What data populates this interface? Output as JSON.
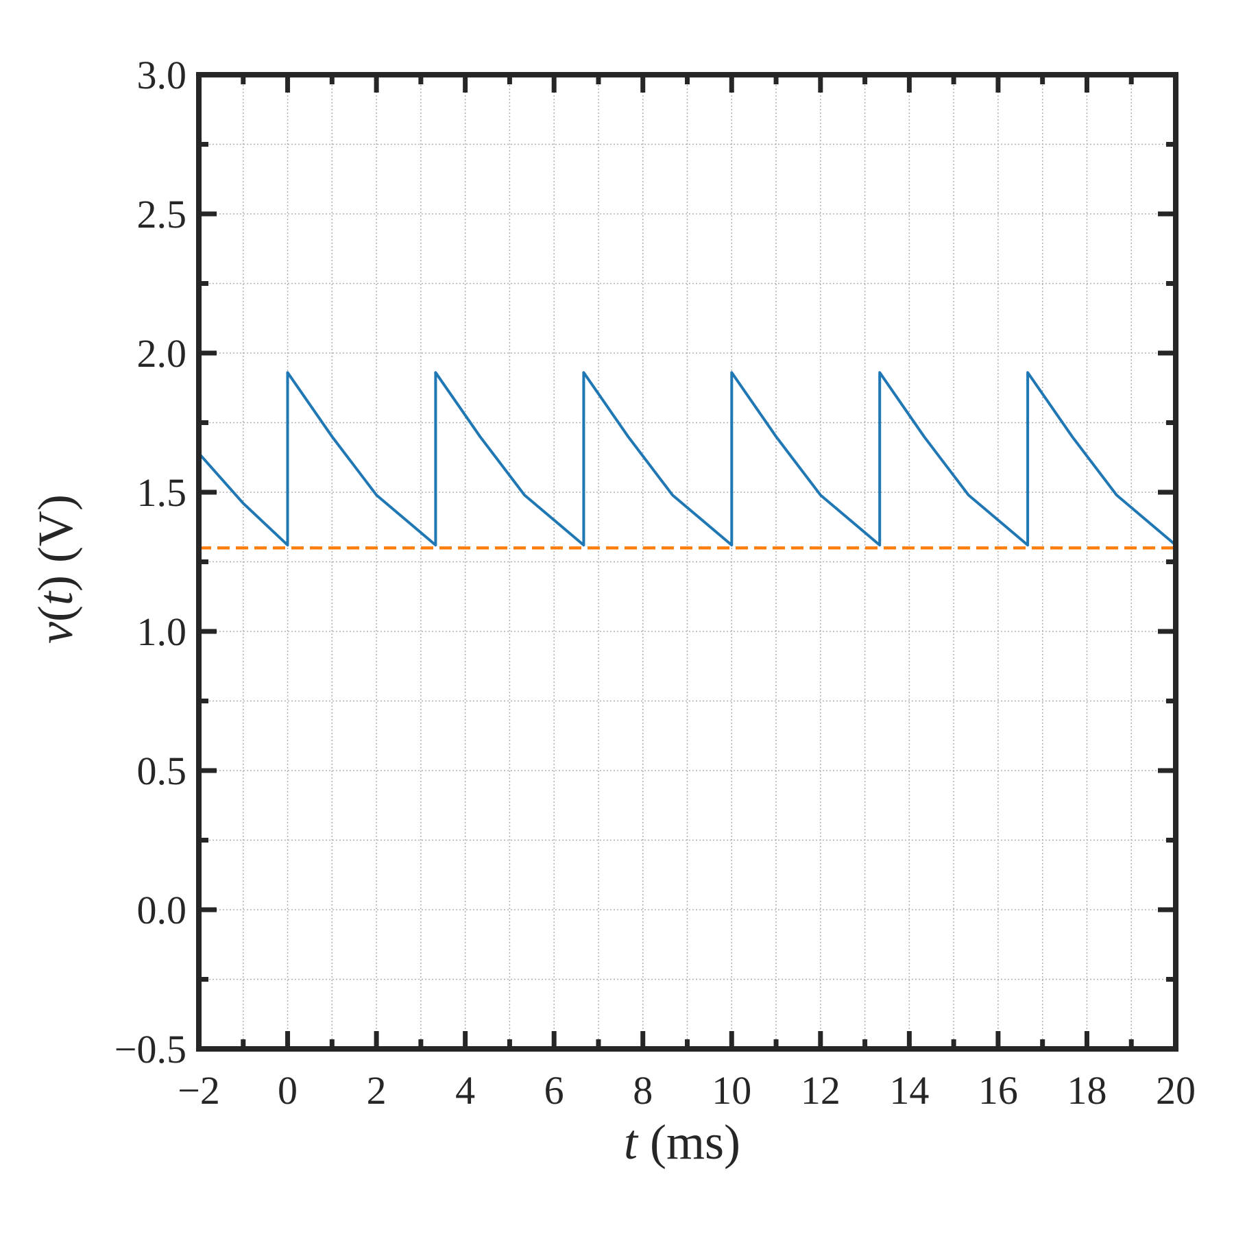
{
  "chart_data": {
    "type": "line",
    "title": "",
    "xlabel": {
      "var": "t",
      "unit": " (ms)"
    },
    "ylabel": {
      "var_v": "v",
      "open": "(",
      "var_t": "t",
      "close": ")",
      "unit": " (V)"
    },
    "xlim": [
      -2,
      20
    ],
    "ylim": [
      -0.5,
      3.0
    ],
    "xticks": [
      -2,
      0,
      2,
      4,
      6,
      8,
      10,
      12,
      14,
      16,
      18,
      20
    ],
    "xtick_labels": [
      "−2",
      "0",
      "2",
      "4",
      "6",
      "8",
      "10",
      "12",
      "14",
      "16",
      "18",
      "20"
    ],
    "yticks": [
      -0.5,
      0.0,
      0.5,
      1.0,
      1.5,
      2.0,
      2.5,
      3.0
    ],
    "ytick_labels": [
      "−0.5",
      "0.0",
      "0.5",
      "1.0",
      "1.5",
      "2.0",
      "2.5",
      "3.0"
    ],
    "grid": true,
    "legend": "none",
    "series": [
      {
        "style": "solid",
        "color": "#1f77b4",
        "x": [
          -2.0,
          -1.0,
          0.0,
          0.0,
          1.0,
          2.0,
          3.333,
          3.333,
          4.333,
          5.333,
          6.667,
          6.667,
          7.667,
          8.667,
          10.0,
          10.0,
          11.0,
          12.0,
          13.333,
          13.333,
          14.333,
          15.333,
          16.667,
          16.667,
          17.667,
          18.667,
          20.0
        ],
        "y": [
          1.64,
          1.46,
          1.31,
          1.93,
          1.7,
          1.49,
          1.31,
          1.93,
          1.7,
          1.49,
          1.31,
          1.93,
          1.7,
          1.49,
          1.31,
          1.93,
          1.7,
          1.49,
          1.31,
          1.93,
          1.7,
          1.49,
          1.31,
          1.93,
          1.7,
          1.49,
          1.31
        ]
      },
      {
        "style": "dashed",
        "color": "#ff7f0e",
        "x": [
          -2,
          20
        ],
        "y": [
          1.3,
          1.3
        ]
      }
    ]
  }
}
